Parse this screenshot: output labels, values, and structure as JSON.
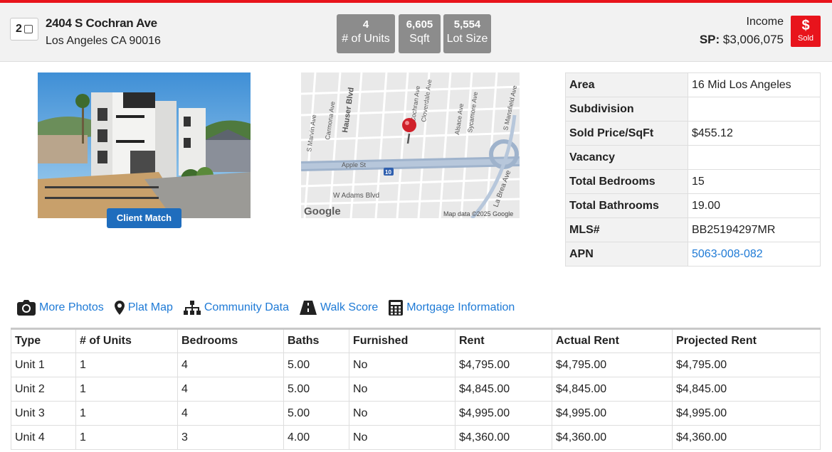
{
  "listing": {
    "index": "2",
    "street": "2404 S Cochran Ave",
    "city_line": "Los Angeles CA 90016"
  },
  "stats": [
    {
      "value": "4",
      "label": "# of Units"
    },
    {
      "value": "6,605",
      "label": "Sqft"
    },
    {
      "value": "5,554",
      "label": "Lot Size"
    }
  ],
  "pricing": {
    "type": "Income",
    "sp_label": "SP:",
    "sp_value": "$3,006,075",
    "status_symbol": "$",
    "status_label": "Sold"
  },
  "photo": {
    "button_label": "Client Match"
  },
  "map": {
    "streets": {
      "marvin": "S Marvin Ave",
      "carmona": "Carmona Ave",
      "hauser": "Hauser Blvd",
      "cochran": "Cochran Ave",
      "cloverdale": "Cloverdale Ave",
      "alsace": "Alsace Ave",
      "sycamore": "Sycamore Ave",
      "mansfield": "S Mansfield Ave",
      "apple": "Apple St",
      "adams": "W Adams Blvd",
      "labrea": "La Brea Ave"
    },
    "freeway_shield": "10",
    "brand": "Google",
    "attribution": "Map data ©2025 Google"
  },
  "details": [
    {
      "label": "Area",
      "value": "16 Mid Los Angeles"
    },
    {
      "label": "Subdivision",
      "value": ""
    },
    {
      "label": "Sold Price/SqFt",
      "value": "$455.12"
    },
    {
      "label": "Vacancy",
      "value": ""
    },
    {
      "label": "Total Bedrooms",
      "value": "15"
    },
    {
      "label": "Total Bathrooms",
      "value": "19.00"
    },
    {
      "label": "MLS#",
      "value": "BB25194297MR"
    },
    {
      "label": "APN",
      "value": "5063-008-082"
    }
  ],
  "links": {
    "photos": "More Photos",
    "plat": "Plat Map",
    "community": "Community Data",
    "walk": "Walk Score",
    "mortgage": "Mortgage Information"
  },
  "units_table": {
    "headers": [
      "Type",
      "# of Units",
      "Bedrooms",
      "Baths",
      "Furnished",
      "Rent",
      "Actual Rent",
      "Projected Rent"
    ],
    "rows": [
      [
        "Unit 1",
        "1",
        "4",
        "5.00",
        "No",
        "$4,795.00",
        "$4,795.00",
        "$4,795.00"
      ],
      [
        "Unit 2",
        "1",
        "4",
        "5.00",
        "No",
        "$4,845.00",
        "$4,845.00",
        "$4,845.00"
      ],
      [
        "Unit 3",
        "1",
        "4",
        "5.00",
        "No",
        "$4,995.00",
        "$4,995.00",
        "$4,995.00"
      ],
      [
        "Unit 4",
        "1",
        "3",
        "4.00",
        "No",
        "$4,360.00",
        "$4,360.00",
        "$4,360.00"
      ]
    ]
  },
  "colors": {
    "accent_red": "#e8141c",
    "link_blue": "#1e7ad6",
    "button_blue": "#1f6dbd",
    "stat_gray": "#8c8c8c"
  }
}
